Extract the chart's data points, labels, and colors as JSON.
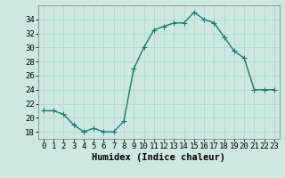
{
  "x": [
    0,
    1,
    2,
    3,
    4,
    5,
    6,
    7,
    8,
    9,
    10,
    11,
    12,
    13,
    14,
    15,
    16,
    17,
    18,
    19,
    20,
    21,
    22,
    23
  ],
  "y": [
    21,
    21,
    20.5,
    19,
    18,
    18.5,
    18,
    18,
    19.5,
    27,
    30,
    32.5,
    33,
    33.5,
    33.5,
    35,
    34,
    33.5,
    31.5,
    29.5,
    28.5,
    24,
    24,
    24
  ],
  "line_color": "#1a7a6e",
  "marker": "+",
  "marker_size": 4,
  "bg_color": "#cde8e4",
  "grid_color": "#b0d8d2",
  "xlabel": "Humidex (Indice chaleur)",
  "xlim": [
    -0.5,
    23.5
  ],
  "ylim": [
    17,
    36
  ],
  "yticks": [
    18,
    20,
    22,
    24,
    26,
    28,
    30,
    32,
    34
  ],
  "xticks": [
    0,
    1,
    2,
    3,
    4,
    5,
    6,
    7,
    8,
    9,
    10,
    11,
    12,
    13,
    14,
    15,
    16,
    17,
    18,
    19,
    20,
    21,
    22,
    23
  ],
  "xlabel_fontsize": 7.5,
  "tick_fontsize": 6.5,
  "linewidth": 1.0
}
